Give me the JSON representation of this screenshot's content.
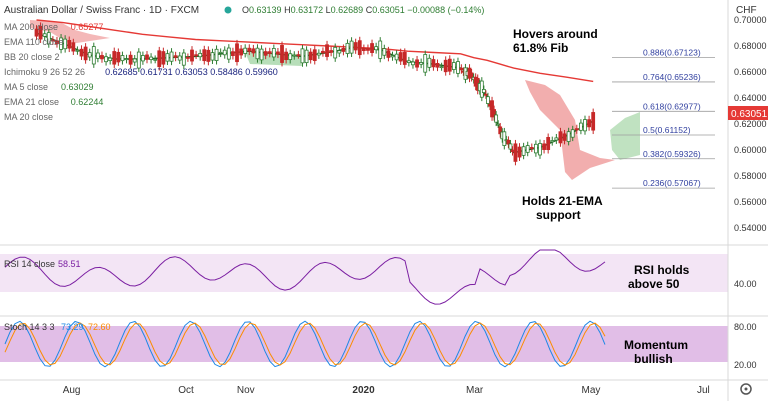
{
  "header": {
    "symbol_title": "Australian Dollar / Swiss Franc · 1D · FXCM",
    "ohlc": {
      "O": "0.63139",
      "H": "0.63172",
      "L": "0.62689",
      "C": "0.63051",
      "change": "−0.00088 (−0.14%)"
    },
    "currency": "CHF"
  },
  "indicator_legend": [
    {
      "label": "MA 200 close",
      "value": "0.65277",
      "color": "#e53935"
    },
    {
      "label": "EMA 110 close",
      "value": "",
      "color": "#888888"
    },
    {
      "label": "BB 20 close 2",
      "value": "",
      "color": "#888888"
    },
    {
      "label": "Ichimoku 9 26 52 26",
      "value": "0.62685  0.61731  0.63053  0.58486  0.59960",
      "color": "#1a237e"
    },
    {
      "label": "MA 5 close",
      "value": "0.63029",
      "color": "#2e7d32"
    },
    {
      "label": "EMA 21 close",
      "value": "0.62244",
      "color": "#2e7d32"
    },
    {
      "label": "MA 20 close",
      "value": "",
      "color": "#888888"
    }
  ],
  "price_axis": {
    "ticks": [
      "0.70000",
      "0.68000",
      "0.66000",
      "0.64000",
      "0.62000",
      "0.60000",
      "0.58000",
      "0.56000",
      "0.54000"
    ],
    "last_price": "0.63051"
  },
  "fib_levels": [
    {
      "label": "0.886(0.67123)",
      "price": 0.67123
    },
    {
      "label": "0.764(0.65236)",
      "price": 0.65236
    },
    {
      "label": "0.618(0.62977)",
      "price": 0.62977
    },
    {
      "label": "0.5(0.61152)",
      "price": 0.61152
    },
    {
      "label": "0.382(0.59326)",
      "price": 0.59326
    },
    {
      "label": "0.236(0.57067)",
      "price": 0.57067
    }
  ],
  "annotations": {
    "fib_note": [
      "Hovers around",
      "61.8% Fib"
    ],
    "ema_note": [
      "Holds 21-EMA",
      "support"
    ],
    "rsi_note": [
      "RSI holds",
      "above 50"
    ],
    "stoch_note": [
      "Momentum",
      "bullish"
    ]
  },
  "rsi_panel": {
    "label": "RSI 14 close",
    "value": "58.51",
    "tick": "40.00",
    "band": [
      30,
      70
    ]
  },
  "stoch_panel": {
    "label": "Stoch 14 3 3",
    "k": "73.29",
    "d": "72.60",
    "ticks": [
      "80.00",
      "20.00"
    ],
    "band": [
      20,
      80
    ]
  },
  "time_axis": [
    "Aug",
    "Oct",
    "Nov",
    "2020",
    "Mar",
    "May",
    "Jul"
  ],
  "chart_data": {
    "type": "line",
    "title": "Australian Dollar / Swiss Franc · 1D · FXCM",
    "x": [
      "2019-07-15",
      "2019-07-29",
      "2019-08-12",
      "2019-08-26",
      "2019-09-09",
      "2019-09-23",
      "2019-10-07",
      "2019-10-21",
      "2019-11-04",
      "2019-11-18",
      "2019-12-02",
      "2019-12-16",
      "2019-12-30",
      "2020-01-13",
      "2020-01-27",
      "2020-02-10",
      "2020-02-24",
      "2020-03-02",
      "2020-03-09",
      "2020-03-16",
      "2020-03-23",
      "2020-04-06",
      "2020-04-20",
      "2020-05-04"
    ],
    "series": [
      {
        "name": "EMA 21 close",
        "values": [
          0.69,
          0.682,
          0.673,
          0.67,
          0.67,
          0.671,
          0.672,
          0.674,
          0.676,
          0.674,
          0.672,
          0.675,
          0.679,
          0.677,
          0.668,
          0.666,
          0.663,
          0.655,
          0.641,
          0.615,
          0.598,
          0.602,
          0.611,
          0.6224
        ]
      },
      {
        "name": "MA 200 close",
        "values": [
          0.7,
          0.698,
          0.695,
          0.692,
          0.689,
          0.687,
          0.685,
          0.684,
          0.683,
          0.682,
          0.681,
          0.68,
          0.679,
          0.678,
          0.676,
          0.675,
          0.674,
          0.671,
          0.669,
          0.666,
          0.663,
          0.659,
          0.656,
          0.6528
        ]
      }
    ],
    "ylim": [
      0.53,
      0.71
    ],
    "ylabel": "CHF",
    "last_close": 0.63051
  }
}
